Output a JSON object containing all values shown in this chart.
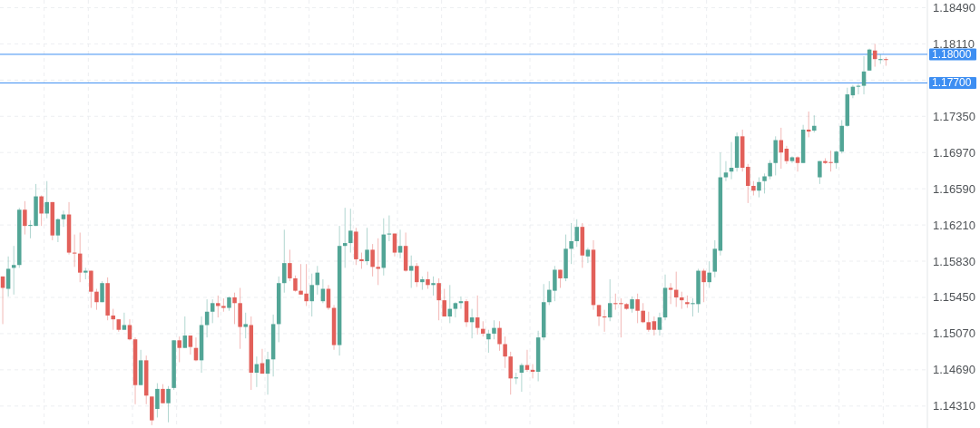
{
  "chart_data": {
    "type": "candlestick",
    "categories": [
      null,
      null,
      null,
      null,
      null,
      null,
      null,
      null,
      null,
      null,
      null,
      null,
      null,
      null,
      null,
      null,
      null,
      null,
      null,
      null,
      null,
      null,
      null,
      null,
      null,
      null,
      null,
      null,
      null,
      null,
      null,
      null,
      null,
      null,
      null,
      null,
      null,
      null,
      null,
      null,
      null,
      null,
      null,
      null,
      null,
      null,
      null,
      null,
      null,
      null,
      null,
      null,
      null,
      null,
      null,
      null,
      null,
      null,
      null,
      null,
      null,
      null,
      null,
      null,
      null,
      null,
      null,
      null,
      null,
      null,
      null,
      null,
      null,
      null,
      null,
      null,
      null,
      null,
      null,
      null,
      null,
      null,
      null,
      null,
      null,
      null,
      null,
      null,
      null,
      null,
      null,
      null,
      null,
      null,
      null,
      null,
      null,
      null,
      null,
      null,
      null,
      null,
      null,
      null,
      null,
      null,
      null,
      null,
      null,
      null,
      null,
      null,
      null,
      null,
      null,
      null,
      null,
      null,
      null,
      null,
      null,
      null,
      null,
      null,
      null,
      null,
      null,
      null,
      null,
      null,
      null,
      null,
      null,
      null,
      null,
      null,
      null,
      null,
      null,
      null,
      null,
      null,
      null,
      null,
      null,
      null,
      null,
      null,
      null,
      null,
      null,
      null,
      null,
      null,
      null,
      null,
      null,
      null,
      null,
      null,
      null,
      null,
      null,
      null,
      null,
      null,
      null,
      null
    ],
    "ohlc": [
      [
        1.1567,
        1.1567,
        1.1517,
        1.1555
      ],
      [
        1.1554,
        1.1588,
        1.1546,
        1.1575
      ],
      [
        1.1576,
        1.1599,
        1.1548,
        1.1579
      ],
      [
        1.1579,
        1.1639,
        1.1576,
        1.1637
      ],
      [
        1.1637,
        1.1646,
        1.1611,
        1.162
      ],
      [
        1.162,
        1.1626,
        1.1607,
        1.1621
      ],
      [
        1.162,
        1.1664,
        1.162,
        1.1651
      ],
      [
        1.1651,
        1.1652,
        1.162,
        1.1633
      ],
      [
        1.1633,
        1.1667,
        1.1628,
        1.1645
      ],
      [
        1.1645,
        1.1645,
        1.1605,
        1.161
      ],
      [
        1.161,
        1.1628,
        1.1603,
        1.1627
      ],
      [
        1.1627,
        1.1636,
        1.1619,
        1.1632
      ],
      [
        1.1632,
        1.1645,
        1.159,
        1.1592
      ],
      [
        1.1592,
        1.1611,
        1.1577,
        1.1591
      ],
      [
        1.1591,
        1.1613,
        1.1561,
        1.1571
      ],
      [
        1.1571,
        1.1576,
        1.1564,
        1.1573
      ],
      [
        1.1573,
        1.1573,
        1.1534,
        1.1551
      ],
      [
        1.1551,
        1.1554,
        1.1532,
        1.154
      ],
      [
        1.154,
        1.1562,
        1.154,
        1.156
      ],
      [
        1.156,
        1.1566,
        1.1521,
        1.1526
      ],
      [
        1.1526,
        1.1533,
        1.1511,
        1.1522
      ],
      [
        1.1522,
        1.1522,
        1.1509,
        1.1511
      ],
      [
        1.1511,
        1.1529,
        1.1511,
        1.1516
      ],
      [
        1.1516,
        1.1522,
        1.15,
        1.1501
      ],
      [
        1.1501,
        1.1503,
        1.1433,
        1.1453
      ],
      [
        1.1453,
        1.149,
        1.1453,
        1.1479
      ],
      [
        1.1479,
        1.1484,
        1.1433,
        1.1442
      ],
      [
        1.1441,
        1.1441,
        1.1411,
        1.1416
      ],
      [
        1.1428,
        1.1455,
        1.1419,
        1.1449
      ],
      [
        1.1449,
        1.1454,
        1.1434,
        1.1434
      ],
      [
        1.1434,
        1.1452,
        1.1414,
        1.1449
      ],
      [
        1.145,
        1.15,
        1.1448,
        1.15
      ],
      [
        1.15,
        1.1504,
        1.1477,
        1.1492
      ],
      [
        1.1492,
        1.1525,
        1.1492,
        1.1505
      ],
      [
        1.1505,
        1.1505,
        1.1485,
        1.1493
      ],
      [
        1.1492,
        1.1503,
        1.1478,
        1.1479
      ],
      [
        1.1479,
        1.1525,
        1.1466,
        1.1516
      ],
      [
        1.1516,
        1.1543,
        1.1503,
        1.153
      ],
      [
        1.153,
        1.1543,
        1.1518,
        1.1539
      ],
      [
        1.1539,
        1.1547,
        1.1524,
        1.1536
      ],
      [
        1.1536,
        1.1544,
        1.153,
        1.1534
      ],
      [
        1.1534,
        1.1546,
        1.1531,
        1.1545
      ],
      [
        1.1545,
        1.155,
        1.1517,
        1.1539
      ],
      [
        1.1539,
        1.1555,
        1.1491,
        1.1514
      ],
      [
        1.1514,
        1.1529,
        1.1502,
        1.1517
      ],
      [
        1.1516,
        1.1525,
        1.1448,
        1.1466
      ],
      [
        1.1466,
        1.1483,
        1.1451,
        1.1475
      ],
      [
        1.1476,
        1.1491,
        1.1465,
        1.1465
      ],
      [
        1.1465,
        1.1488,
        1.1443,
        1.148
      ],
      [
        1.148,
        1.1527,
        1.1462,
        1.1517
      ],
      [
        1.1517,
        1.1567,
        1.1498,
        1.156
      ],
      [
        1.156,
        1.1616,
        1.155,
        1.1581
      ],
      [
        1.1581,
        1.1595,
        1.1562,
        1.1565
      ],
      [
        1.1565,
        1.1568,
        1.1551,
        1.1552
      ],
      [
        1.1552,
        1.158,
        1.1548,
        1.1548
      ],
      [
        1.1549,
        1.158,
        1.1536,
        1.1541
      ],
      [
        1.1541,
        1.157,
        1.1525,
        1.1558
      ],
      [
        1.1558,
        1.1578,
        1.1548,
        1.1571
      ],
      [
        1.1541,
        1.1564,
        1.1539,
        1.1554
      ],
      [
        1.1554,
        1.1558,
        1.1532,
        1.1534
      ],
      [
        1.1534,
        1.1537,
        1.149,
        1.1495
      ],
      [
        1.1495,
        1.162,
        1.1484,
        1.1599
      ],
      [
        1.1599,
        1.1639,
        1.1576,
        1.1602
      ],
      [
        1.1602,
        1.1638,
        1.1592,
        1.1615
      ],
      [
        1.1614,
        1.1618,
        1.1579,
        1.1585
      ],
      [
        1.1585,
        1.1592,
        1.1575,
        1.1583
      ],
      [
        1.1583,
        1.1618,
        1.1579,
        1.1595
      ],
      [
        1.1595,
        1.1601,
        1.1567,
        1.1577
      ],
      [
        1.1577,
        1.1607,
        1.1558,
        1.1575
      ],
      [
        1.1576,
        1.1628,
        1.1568,
        1.1611
      ],
      [
        1.1611,
        1.1631,
        1.1604,
        1.1612
      ],
      [
        1.1612,
        1.1612,
        1.1588,
        1.1592
      ],
      [
        1.1592,
        1.1616,
        1.1586,
        1.1599
      ],
      [
        1.1599,
        1.1613,
        1.1572,
        1.1573
      ],
      [
        1.1573,
        1.1589,
        1.1555,
        1.1578
      ],
      [
        1.1578,
        1.1581,
        1.1556,
        1.1561
      ],
      [
        1.1561,
        1.1567,
        1.1553,
        1.1564
      ],
      [
        1.1564,
        1.1572,
        1.1554,
        1.1558
      ],
      [
        1.1558,
        1.1567,
        1.1547,
        1.156
      ],
      [
        1.156,
        1.1565,
        1.1521,
        1.1542
      ],
      [
        1.1542,
        1.1554,
        1.1525,
        1.1525
      ],
      [
        1.1525,
        1.1558,
        1.1518,
        1.1533
      ],
      [
        1.1533,
        1.154,
        1.1524,
        1.1539
      ],
      [
        1.1539,
        1.1546,
        1.1533,
        1.1541
      ],
      [
        1.1541,
        1.1543,
        1.1514,
        1.1519
      ],
      [
        1.1519,
        1.1533,
        1.1502,
        1.1524
      ],
      [
        1.1524,
        1.1547,
        1.1506,
        1.1513
      ],
      [
        1.1512,
        1.152,
        1.1504,
        1.1507
      ],
      [
        1.1501,
        1.1511,
        1.1487,
        1.1507
      ],
      [
        1.1507,
        1.1521,
        1.1501,
        1.1513
      ],
      [
        1.1513,
        1.152,
        1.1489,
        1.1496
      ],
      [
        1.1496,
        1.1504,
        1.1471,
        1.1483
      ],
      [
        1.1483,
        1.1488,
        1.1443,
        1.146
      ],
      [
        1.146,
        1.1466,
        1.1454,
        1.1461
      ],
      [
        1.1466,
        1.1476,
        1.1446,
        1.1474
      ],
      [
        1.1474,
        1.149,
        1.1467,
        1.1469
      ],
      [
        1.1469,
        1.1475,
        1.146,
        1.1467
      ],
      [
        1.1467,
        1.151,
        1.1457,
        1.1503
      ],
      [
        1.1503,
        1.1559,
        1.15,
        1.154
      ],
      [
        1.154,
        1.1562,
        1.1537,
        1.1553
      ],
      [
        1.1552,
        1.1578,
        1.1541,
        1.1574
      ],
      [
        1.1574,
        1.1574,
        1.1555,
        1.1565
      ],
      [
        1.1565,
        1.1611,
        1.1562,
        1.1596
      ],
      [
        1.1596,
        1.1623,
        1.158,
        1.1604
      ],
      [
        1.1604,
        1.1627,
        1.1598,
        1.1619
      ],
      [
        1.1619,
        1.1623,
        1.1576,
        1.1589
      ],
      [
        1.1588,
        1.1597,
        1.1581,
        1.1595
      ],
      [
        1.1595,
        1.1605,
        1.1532,
        1.1537
      ],
      [
        1.1537,
        1.1537,
        1.1515,
        1.1525
      ],
      [
        1.1525,
        1.1532,
        1.1509,
        1.1524
      ],
      [
        1.1524,
        1.1564,
        1.152,
        1.1539
      ],
      [
        1.1539,
        1.1549,
        1.1532,
        1.1538
      ],
      [
        1.1539,
        1.1544,
        1.1503,
        1.1538
      ],
      [
        1.1538,
        1.1539,
        1.1532,
        1.1533
      ],
      [
        1.1533,
        1.1546,
        1.1529,
        1.1543
      ],
      [
        1.1543,
        1.1549,
        1.1518,
        1.1531
      ],
      [
        1.1531,
        1.1539,
        1.1518,
        1.1519
      ],
      [
        1.1519,
        1.153,
        1.1509,
        1.1511
      ],
      [
        1.152,
        1.1525,
        1.1505,
        1.1511
      ],
      [
        1.1511,
        1.1529,
        1.1505,
        1.1524
      ],
      [
        1.1524,
        1.1569,
        1.1521,
        1.1555
      ],
      [
        1.1555,
        1.156,
        1.1538,
        1.1553
      ],
      [
        1.1553,
        1.1572,
        1.1535,
        1.1545
      ],
      [
        1.1545,
        1.1551,
        1.1533,
        1.1542
      ],
      [
        1.154,
        1.1547,
        1.1534,
        1.1538
      ],
      [
        1.1538,
        1.1544,
        1.1525,
        1.1539
      ],
      [
        1.1538,
        1.1575,
        1.1529,
        1.1573
      ],
      [
        1.1573,
        1.1575,
        1.154,
        1.1561
      ],
      [
        1.1561,
        1.1583,
        1.1555,
        1.1571
      ],
      [
        1.1572,
        1.1605,
        1.1566,
        1.1596
      ],
      [
        1.1594,
        1.1697,
        1.1589,
        1.1671
      ],
      [
        1.1671,
        1.1688,
        1.1667,
        1.1676
      ],
      [
        1.1677,
        1.1708,
        1.1669,
        1.1681
      ],
      [
        1.1681,
        1.1718,
        1.1677,
        1.1714
      ],
      [
        1.1714,
        1.1721,
        1.1677,
        1.1681
      ],
      [
        1.1682,
        1.1685,
        1.1644,
        1.1662
      ],
      [
        1.1662,
        1.1667,
        1.1652,
        1.1657
      ],
      [
        1.1657,
        1.1671,
        1.165,
        1.1666
      ],
      [
        1.1667,
        1.1675,
        1.1654,
        1.1672
      ],
      [
        1.1672,
        1.1689,
        1.1669,
        1.1686
      ],
      [
        1.1686,
        1.1714,
        1.1673,
        1.171
      ],
      [
        1.171,
        1.1723,
        1.168,
        1.1697
      ],
      [
        1.1701,
        1.1704,
        1.1685,
        1.1688
      ],
      [
        1.1688,
        1.1693,
        1.1686,
        1.1692
      ],
      [
        1.1692,
        1.1693,
        1.1677,
        1.1686
      ],
      [
        1.1686,
        1.1726,
        1.1686,
        1.1721
      ],
      [
        1.1721,
        1.174,
        1.1713,
        1.1719
      ],
      [
        1.172,
        1.1736,
        1.1718,
        1.1725
      ],
      [
        1.1671,
        1.1688,
        1.1664,
        1.1688
      ],
      [
        1.1688,
        1.1691,
        1.1685,
        1.1686
      ],
      [
        1.1687,
        1.1699,
        1.1677,
        1.1686
      ],
      [
        1.1686,
        1.1699,
        1.168,
        1.1698
      ],
      [
        1.1698,
        1.1731,
        1.1696,
        1.1725
      ],
      [
        1.1725,
        1.1765,
        1.1724,
        1.1758
      ],
      [
        1.1757,
        1.1768,
        1.1754,
        1.1766
      ],
      [
        1.1766,
        1.1769,
        1.1758,
        1.1767
      ],
      [
        1.1767,
        1.1798,
        1.1758,
        1.1782
      ],
      [
        1.1783,
        1.1806,
        1.1783,
        1.1805
      ],
      [
        1.1804,
        1.1811,
        1.1787,
        1.1795
      ],
      [
        1.1794,
        1.18,
        1.179,
        1.1795
      ],
      [
        1.1795,
        1.1797,
        1.1788,
        1.1794
      ],
      null,
      null,
      null,
      null,
      null,
      null,
      null
    ],
    "colors": [
      "#e2605a",
      "#52a596",
      "#52a596",
      "#52a596",
      "#e2605a",
      "#52a596",
      "#52a596",
      "#e2605a",
      "#52a596",
      "#e2605a",
      "#52a596",
      "#52a596",
      "#e2605a",
      "#e2605a",
      "#e2605a",
      "#52a596",
      "#e2605a",
      "#e2605a",
      "#52a596",
      "#e2605a",
      "#e2605a",
      "#e2605a",
      "#52a596",
      "#e2605a",
      "#e2605a",
      "#52a596",
      "#e2605a",
      "#e2605a",
      "#52a596",
      "#e2605a",
      "#52a596",
      "#52a596",
      "#e2605a",
      "#52a596",
      "#e2605a",
      "#e2605a",
      "#52a596",
      "#52a596",
      "#52a596",
      "#e2605a",
      "#e2605a",
      "#52a596",
      "#e2605a",
      "#e2605a",
      "#52a596",
      "#e2605a",
      "#52a596",
      "#e2605a",
      "#52a596",
      "#52a596",
      "#52a596",
      "#52a596",
      "#e2605a",
      "#e2605a",
      "#e2605a",
      "#e2605a",
      "#52a596",
      "#52a596",
      "#52a596",
      "#e2605a",
      "#e2605a",
      "#52a596",
      "#52a596",
      "#52a596",
      "#e2605a",
      "#e2605a",
      "#52a596",
      "#e2605a",
      "#e2605a",
      "#52a596",
      "#52a596",
      "#e2605a",
      "#52a596",
      "#e2605a",
      "#52a596",
      "#e2605a",
      "#52a596",
      "#e2605a",
      "#52a596",
      "#e2605a",
      "#e2605a",
      "#52a596",
      "#52a596",
      "#52a596",
      "#e2605a",
      "#52a596",
      "#e2605a",
      "#e2605a",
      "#52a596",
      "#52a596",
      "#e2605a",
      "#e2605a",
      "#e2605a",
      "#52a596",
      "#52a596",
      "#e2605a",
      "#e2605a",
      "#52a596",
      "#52a596",
      "#52a596",
      "#52a596",
      "#e2605a",
      "#52a596",
      "#52a596",
      "#52a596",
      "#e2605a",
      "#52a596",
      "#e2605a",
      "#e2605a",
      "#e2605a",
      "#52a596",
      "#e2605a",
      "#e2605a",
      "#e2605a",
      "#52a596",
      "#e2605a",
      "#e2605a",
      "#e2605a",
      "#e2605a",
      "#52a596",
      "#52a596",
      "#e2605a",
      "#e2605a",
      "#e2605a",
      "#e2605a",
      "#52a596",
      "#52a596",
      "#e2605a",
      "#52a596",
      "#52a596",
      "#52a596",
      "#52a596",
      "#52a596",
      "#52a596",
      "#e2605a",
      "#e2605a",
      "#e2605a",
      "#52a596",
      "#52a596",
      "#52a596",
      "#52a596",
      "#e2605a",
      "#e2605a",
      "#52a596",
      "#e2605a",
      "#52a596",
      "#e2605a",
      "#52a596",
      "#52a596",
      "#e2605a",
      "#e2605a",
      "#52a596",
      "#52a596",
      "#52a596",
      "#52a596",
      "#52a596",
      "#52a596",
      "#52a596",
      "#e2605a",
      "#52a596",
      "#e2605a",
      null,
      null,
      null,
      null,
      null,
      null,
      null
    ],
    "ylim": [
      1.1408,
      1.1857
    ],
    "yticks": [
      {
        "value": 1.1431,
        "label": "1.14310"
      },
      {
        "value": 1.1469,
        "label": "1.14690"
      },
      {
        "value": 1.1507,
        "label": "1.15070"
      },
      {
        "value": 1.1545,
        "label": "1.15450"
      },
      {
        "value": 1.1583,
        "label": "1.15830"
      },
      {
        "value": 1.1621,
        "label": "1.16210"
      },
      {
        "value": 1.1659,
        "label": "1.16590"
      },
      {
        "value": 1.1697,
        "label": "1.16970"
      },
      {
        "value": 1.1735,
        "label": "1.17350"
      },
      {
        "value": 1.1773,
        "label": null
      },
      {
        "value": 1.1811,
        "label": "1.18110"
      },
      {
        "value": 1.1849,
        "label": "1.18490"
      }
    ],
    "grid": true,
    "ref_lines": [
      {
        "axis": "y",
        "value": 1.18,
        "label": "1.18000",
        "color": "#3d8ef2"
      },
      {
        "axis": "y",
        "value": 1.177,
        "label": "1.17700",
        "color": "#3d8ef2"
      }
    ]
  }
}
